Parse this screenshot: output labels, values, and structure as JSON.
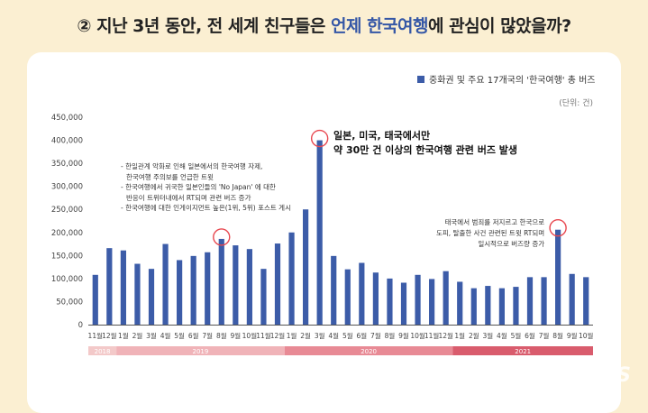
{
  "title": {
    "prefix": "② 지난 3년 동안, 전 세계 친구들은 ",
    "highlight1": "언제",
    "space": " ",
    "highlight2": "한국여행",
    "suffix": "에 관심이 많았을까?"
  },
  "legend": {
    "label": "중화권 및 주요 17개국의 '한국여행' 총 버즈",
    "color": "#3c5ca8"
  },
  "unit": "(단위: 건)",
  "annotations": {
    "main": [
      "일본, 미국, 태국에서만",
      "약 30만 건 이상의 한국여행 관련 버즈 발생"
    ],
    "left": [
      "- 한일관계 악화로 인해 일본에서의 한국여행 자제,",
      "  한국여행 주의보를 언급한 트윗",
      "- 한국여행에서 귀국한 일본인들의 'No Japan' 에 대한",
      "  반응이 트위터내에서 RT되며 관련 버즈 증가",
      "- 한국여행에 대한 인게이지먼트 높은(1위, 5위) 포스트 게시"
    ],
    "right": [
      "태국에서 범죄를 저지르고 한국으로",
      "도피, 탈출한 사건 관련된 트윗 RT되며",
      "일시적으로 버즈량 증가"
    ]
  },
  "watermark": "NEWSIS",
  "chart_data": {
    "type": "bar",
    "yticks": [
      0,
      50000,
      100000,
      150000,
      200000,
      250000,
      300000,
      350000,
      400000,
      450000
    ],
    "ytick_labels": [
      "0",
      "50,000",
      "100,000",
      "150,000",
      "200,000",
      "250,000",
      "300,000",
      "350,000",
      "400,000",
      "450,000"
    ],
    "ylim": [
      0,
      450000
    ],
    "categories": [
      "11월",
      "12월",
      "1월",
      "2월",
      "3월",
      "4월",
      "5월",
      "6월",
      "7월",
      "8월",
      "9월",
      "10월",
      "11월",
      "12월",
      "1월",
      "2월",
      "3월",
      "4월",
      "5월",
      "6월",
      "7월",
      "8월",
      "9월",
      "10월",
      "11월",
      "12월",
      "1월",
      "2월",
      "3월",
      "4월",
      "5월",
      "6월",
      "7월",
      "8월",
      "9월",
      "10월"
    ],
    "series": [
      {
        "values": [
          108000,
          166000,
          161000,
          132000,
          121000,
          175000,
          140000,
          149000,
          157000,
          186000,
          172000,
          164000,
          121000,
          176000,
          200000,
          250000,
          400000,
          149000,
          120000,
          134000,
          113000,
          100000,
          91000,
          108000,
          99000,
          116000,
          93000,
          79000,
          84000,
          79000,
          82000,
          103000,
          103000,
          206000,
          110000,
          103000
        ],
        "color": "#3c5ca8"
      }
    ],
    "years": [
      {
        "label": "2018",
        "from": 0,
        "to": 1,
        "color": "#f3c9c9",
        "text_color": "#ffffff"
      },
      {
        "label": "2019",
        "from": 2,
        "to": 13,
        "color": "#f0b3b8",
        "text_color": "#ffffff"
      },
      {
        "label": "2020",
        "from": 14,
        "to": 25,
        "color": "#e88a95",
        "text_color": "#ffffff"
      },
      {
        "label": "2021",
        "from": 26,
        "to": 35,
        "color": "#d95c6d",
        "text_color": "#ffffff"
      }
    ],
    "highlight_indices": [
      9,
      16,
      33
    ],
    "highlight_color": "#e8474f"
  }
}
